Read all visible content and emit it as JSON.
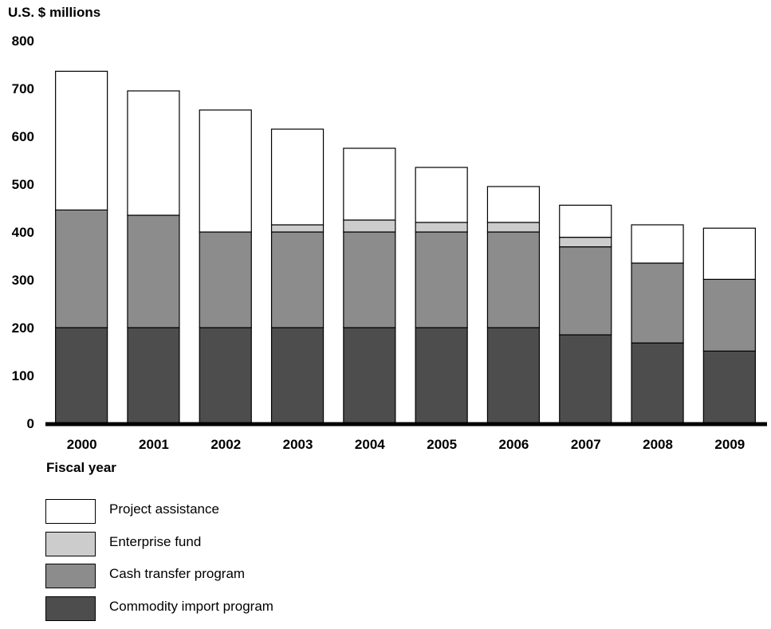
{
  "chart_data": {
    "type": "bar",
    "stacked": true,
    "ylabel": "U.S. $ millions",
    "xlabel": "Fiscal year",
    "ylim": [
      0,
      800
    ],
    "yticks": [
      0,
      100,
      200,
      300,
      400,
      500,
      600,
      700,
      800
    ],
    "grid": false,
    "legend_position": "bottom-left",
    "categories": [
      "2000",
      "2001",
      "2002",
      "2003",
      "2004",
      "2005",
      "2006",
      "2007",
      "2008",
      "2009"
    ],
    "series": [
      {
        "name": "Commodity import program",
        "color": "#4d4d4d",
        "values": [
          200,
          200,
          200,
          200,
          200,
          200,
          200,
          185,
          168,
          151
        ]
      },
      {
        "name": "Cash transfer program",
        "color": "#8c8c8c",
        "values": [
          246,
          235,
          200,
          200,
          200,
          200,
          200,
          184,
          167,
          150
        ]
      },
      {
        "name": "Enterprise fund",
        "color": "#cccccc",
        "values": [
          0,
          0,
          0,
          15,
          25,
          20,
          20,
          20,
          0,
          0
        ]
      },
      {
        "name": "Project assistance",
        "color": "#ffffff",
        "values": [
          290,
          260,
          255,
          200,
          150,
          115,
          75,
          67,
          80,
          107
        ]
      }
    ],
    "legend_order": [
      "Project assistance",
      "Enterprise fund",
      "Cash transfer program",
      "Commodity import program"
    ]
  }
}
